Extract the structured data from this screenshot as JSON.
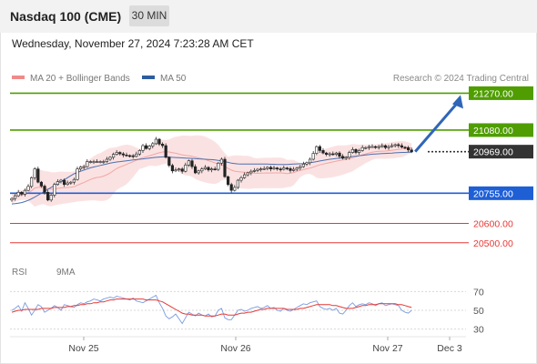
{
  "header": {
    "title": "Nasdaq 100 (CME)",
    "timeframe": "30 MIN",
    "timestamp": "Wednesday, November 27, 2024 7:23:28 AM CET"
  },
  "legend": {
    "bollinger": "MA 20 + Bollinger Bands",
    "ma50": "MA 50",
    "research": "Research © 2024 Trading Central",
    "colors": {
      "bollinger": "#f08a8a",
      "ma50": "#2e5c9e"
    }
  },
  "rsi_legend": {
    "rsi": "RSI",
    "ma9": "9MA",
    "colors": {
      "rsi": "#5b84d6",
      "ma9": "#e00000"
    }
  },
  "chart_data": [
    {
      "type": "line",
      "title": "",
      "ylim": [
        20410,
        21300
      ],
      "x_ticks": [
        "Nov 25",
        "Nov 26",
        "Nov 27",
        "Dec 3"
      ],
      "candles": [
        20728,
        20742,
        20760,
        20750,
        20770,
        20790,
        20835,
        20880,
        20812,
        20792,
        20760,
        20720,
        20745,
        20800,
        20815,
        20822,
        20800,
        20808,
        20812,
        20826,
        20880,
        20890,
        20892,
        20918,
        20918,
        20918,
        20918,
        20918,
        20918,
        20930,
        20940,
        20955,
        20965,
        20958,
        20952,
        20949,
        20948,
        20945,
        20957,
        20975,
        21000,
        20985,
        20998,
        21010,
        21033,
        21008,
        21000,
        20940,
        20898,
        20870,
        20875,
        20880,
        20868,
        20900,
        20922,
        20892,
        20860,
        20870,
        20880,
        20888,
        20875,
        20880,
        20878,
        20910,
        20930,
        20840,
        20800,
        20770,
        20785,
        20822,
        20835,
        20850,
        20860,
        20868,
        20872,
        20878,
        20880,
        20882,
        20888,
        20880,
        20885,
        20880,
        20878,
        20885,
        20882,
        20872,
        20878,
        20885,
        20892,
        20905,
        20912,
        20930,
        20960,
        20995,
        20975,
        20962,
        20955,
        20958,
        20955,
        20962,
        20945,
        20935,
        20940,
        20965,
        20980,
        20965,
        20975,
        20990,
        20990,
        20995,
        20995,
        20992,
        20995,
        21000,
        20990,
        20995,
        21000,
        21005,
        21000,
        20992,
        20990,
        20978,
        20968
      ],
      "ma50": [
        20700,
        20702,
        20704,
        20707,
        20712,
        20718,
        20726,
        20735,
        20745,
        20755,
        20765,
        20775,
        20785,
        20795,
        20805,
        20815,
        20825,
        20835,
        20845,
        20855,
        20862,
        20868,
        20874,
        20880,
        20886,
        20890,
        20894,
        20898,
        20902,
        20906,
        20910,
        20913,
        20916,
        20918,
        20920,
        20922,
        20924,
        20926,
        20928,
        20930,
        20932,
        20934,
        20936,
        20938,
        20940,
        20941,
        20942,
        20942,
        20941,
        20940,
        20939,
        20938,
        20937,
        20936,
        20935,
        20934,
        20933,
        20932,
        20931,
        20930,
        20929,
        20928,
        20926,
        20924,
        20922,
        20918,
        20914,
        20910,
        20908,
        20906,
        20905,
        20905,
        20905,
        20905,
        20905,
        20905,
        20905,
        20905,
        20905,
        20904,
        20904,
        20903,
        20903,
        20903,
        20903,
        20904,
        20905,
        20906,
        20907,
        20908,
        20910,
        20912,
        20915,
        20918,
        20921,
        20924,
        20927,
        20930,
        20932,
        20934,
        20936,
        20938,
        20940,
        20942,
        20944,
        20946,
        20948,
        20950,
        20952,
        20954,
        20956,
        20957,
        20958,
        20959,
        20960,
        20961,
        20962,
        20963,
        20964,
        20965,
        20965,
        20966,
        20966
      ],
      "levels": [
        {
          "value": 21270.0,
          "label": "21270.00",
          "role": "resistance",
          "color": "#4f9d00"
        },
        {
          "value": 21080.0,
          "label": "21080.00",
          "role": "resistance",
          "color": "#4f9d00"
        },
        {
          "value": 20969.0,
          "label": "20969.00",
          "role": "last price",
          "color": "#333333"
        },
        {
          "value": 20755.0,
          "label": "20755.00",
          "role": "pivot",
          "color": "#1f5fd6"
        },
        {
          "value": 20600.0,
          "label": "20600.00",
          "role": "support",
          "color": "#e53935"
        },
        {
          "value": 20500.0,
          "label": "20500.00",
          "role": "support",
          "color": "#e53935"
        }
      ],
      "projection": {
        "from": 20969,
        "to": 21270
      }
    },
    {
      "type": "line",
      "title": "",
      "ylim": [
        20,
        80
      ],
      "y_ticks": [
        "70",
        "50",
        "30"
      ],
      "reference_lines": [
        70,
        50,
        30
      ],
      "rsi": [
        50,
        52,
        55,
        49,
        58,
        52,
        45,
        50,
        56,
        54,
        48,
        50,
        52,
        55,
        53,
        50,
        56,
        55,
        54,
        53,
        56,
        58,
        57,
        59,
        60,
        62,
        61,
        60,
        62,
        63,
        64,
        63,
        65,
        64,
        63,
        62,
        61,
        63,
        60,
        59,
        58,
        60,
        62,
        64,
        66,
        58,
        52,
        44,
        41,
        43,
        46,
        41,
        36,
        42,
        48,
        46,
        44,
        47,
        45,
        44,
        46,
        43,
        44,
        50,
        52,
        42,
        40,
        40,
        45,
        50,
        51,
        49,
        50,
        52,
        53,
        54,
        52,
        53,
        55,
        52,
        53,
        50,
        49,
        52,
        50,
        49,
        51,
        53,
        55,
        57,
        56,
        58,
        59,
        60,
        54,
        52,
        51,
        52,
        50,
        52,
        47,
        46,
        50,
        55,
        58,
        54,
        56,
        57,
        56,
        58,
        57,
        55,
        57,
        58,
        55,
        56,
        57,
        56,
        55,
        50,
        48,
        47,
        50
      ],
      "ma9": [
        48,
        49,
        50,
        50,
        51,
        51,
        51,
        51,
        51,
        52,
        52,
        52,
        52,
        53,
        53,
        53,
        53,
        54,
        54,
        55,
        55,
        56,
        56,
        57,
        57,
        58,
        58,
        59,
        59,
        60,
        61,
        61,
        62,
        62,
        62,
        62,
        62,
        62,
        62,
        62,
        62,
        61,
        61,
        61,
        61,
        60,
        59,
        57,
        55,
        53,
        51,
        49,
        47,
        46,
        46,
        45,
        45,
        45,
        45,
        44,
        44,
        44,
        44,
        45,
        46,
        46,
        45,
        45,
        45,
        46,
        47,
        47,
        48,
        48,
        49,
        50,
        51,
        51,
        52,
        52,
        52,
        52,
        52,
        52,
        51,
        51,
        51,
        51,
        52,
        52,
        53,
        54,
        55,
        56,
        56,
        56,
        56,
        56,
        55,
        55,
        54,
        53,
        52,
        52,
        52,
        53,
        54,
        55,
        55,
        56,
        56,
        56,
        57,
        57,
        57,
        57,
        57,
        57,
        56,
        56,
        55,
        54,
        53
      ]
    }
  ]
}
